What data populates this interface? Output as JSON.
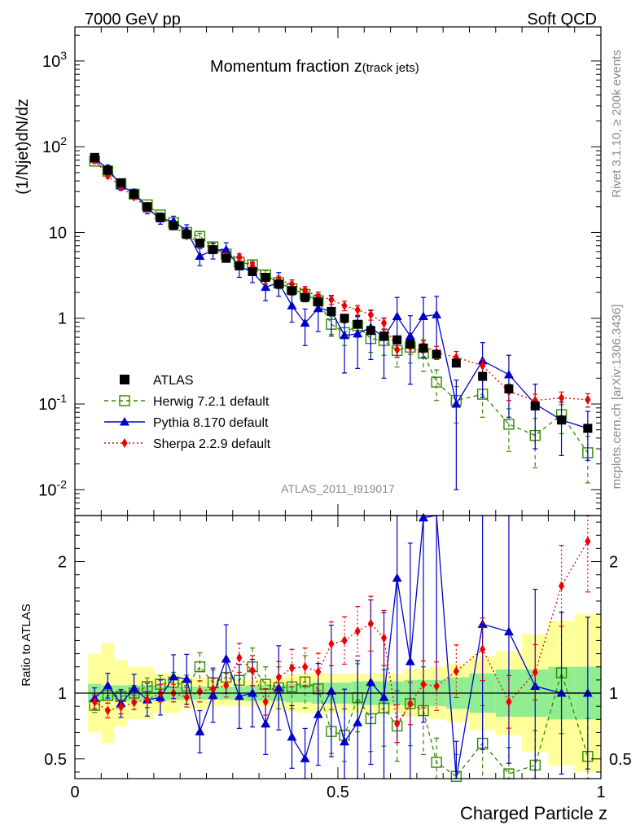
{
  "header": {
    "left": "7000 GeV pp",
    "right": "Soft QCD"
  },
  "side_texts": {
    "rivet": "Rivet 3.1.10, ≥ 200k events",
    "mcplots": "mcplots.cern.ch [arXiv:1306.3436]"
  },
  "chart_data": {
    "type": "line",
    "title": "Momentum fraction z",
    "title_sub": "(track jets)",
    "xlabel": "Charged Particle z",
    "ylabel": "(1/Njet)dN/dz",
    "ratio_ylabel": "Ratio to ATLAS",
    "analysis_label": "ATLAS_2011_I919017",
    "xlim": [
      0,
      1
    ],
    "ylim": [
      0.005,
      2500
    ],
    "yscale": "log",
    "ratio_ylim": [
      0.35,
      2.35
    ],
    "x_ticks": [
      "0",
      "0.5",
      "1"
    ],
    "y_ticks": [
      "10^-2",
      "10^-1",
      "1",
      "10",
      "10^2",
      "10^3"
    ],
    "ratio_ticks": [
      "0.5",
      "1",
      "2"
    ],
    "legend_position": "lower-left",
    "x": [
      0.0375,
      0.0625,
      0.0875,
      0.1125,
      0.1375,
      0.1625,
      0.1875,
      0.2125,
      0.2375,
      0.2625,
      0.2875,
      0.3125,
      0.3375,
      0.3625,
      0.3875,
      0.4125,
      0.4375,
      0.4625,
      0.4875,
      0.5125,
      0.5375,
      0.5625,
      0.5875,
      0.6125,
      0.6375,
      0.6625,
      0.6875,
      0.725,
      0.775,
      0.825,
      0.875,
      0.925,
      0.975
    ],
    "series": [
      {
        "name": "ATLAS",
        "style": "data",
        "color": "#000000",
        "values": [
          75,
          53,
          38,
          28,
          20,
          15,
          12,
          9.5,
          7.5,
          6.3,
          5.0,
          4.1,
          3.5,
          3.0,
          2.5,
          2.1,
          1.75,
          1.55,
          1.2,
          1.0,
          0.85,
          0.72,
          0.62,
          0.56,
          0.5,
          0.45,
          0.38,
          0.3,
          0.21,
          0.15,
          0.095,
          0.065,
          0.052
        ],
        "band_inner": [
          0.07,
          0.06,
          0.06,
          0.06,
          0.06,
          0.06,
          0.05,
          0.05,
          0.05,
          0.05,
          0.05,
          0.05,
          0.06,
          0.06,
          0.06,
          0.07,
          0.07,
          0.08,
          0.08,
          0.08,
          0.09,
          0.09,
          0.09,
          0.09,
          0.1,
          0.1,
          0.1,
          0.12,
          0.15,
          0.18,
          0.18,
          0.2,
          0.2
        ],
        "band_outer": [
          0.3,
          0.38,
          0.25,
          0.2,
          0.2,
          0.15,
          0.15,
          0.12,
          0.12,
          0.1,
          0.1,
          0.1,
          0.1,
          0.1,
          0.12,
          0.14,
          0.15,
          0.15,
          0.15,
          0.15,
          0.15,
          0.15,
          0.15,
          0.15,
          0.18,
          0.18,
          0.2,
          0.22,
          0.28,
          0.32,
          0.45,
          0.55,
          0.6
        ]
      },
      {
        "name": "Herwig 7.2.1 default",
        "style": "dashed",
        "marker": "open-square",
        "color": "#338800",
        "values": [
          68,
          52,
          37,
          28,
          21,
          16,
          13,
          10,
          9,
          6.8,
          5.6,
          4.5,
          4.2,
          3.2,
          2.6,
          2.2,
          1.9,
          1.6,
          0.85,
          0.68,
          0.82,
          0.58,
          0.55,
          0.42,
          0.46,
          0.39,
          0.18,
          0.11,
          0.13,
          0.058,
          0.043,
          0.075,
          0.027
        ],
        "err": [
          4,
          3,
          2,
          1.6,
          1.3,
          1,
          0.9,
          0.8,
          0.8,
          0.6,
          0.6,
          0.5,
          0.5,
          0.4,
          0.4,
          0.35,
          0.35,
          0.3,
          0.2,
          0.2,
          0.22,
          0.18,
          0.18,
          0.15,
          0.16,
          0.15,
          0.07,
          0.05,
          0.06,
          0.03,
          0.025,
          0.03,
          0.015
        ]
      },
      {
        "name": "Pythia 8.170 default",
        "style": "solid",
        "marker": "triangle",
        "color": "#0000cc",
        "values": [
          72,
          56,
          35,
          29,
          19,
          14.5,
          13.5,
          10.5,
          5.3,
          6.2,
          6.3,
          4.0,
          3.5,
          2.3,
          2.6,
          1.4,
          0.88,
          1.3,
          1.22,
          0.63,
          0.66,
          0.78,
          0.6,
          1.05,
          0.62,
          1.05,
          1.1,
          0.1,
          0.32,
          0.22,
          0.1,
          0.065,
          0.052
        ],
        "err": [
          6,
          5,
          4,
          3,
          2.5,
          2,
          2,
          1.8,
          1.2,
          1.3,
          1.3,
          1,
          0.9,
          0.7,
          0.8,
          0.5,
          0.4,
          0.6,
          0.6,
          0.4,
          0.4,
          0.45,
          0.4,
          0.7,
          0.45,
          0.7,
          0.7,
          0.09,
          0.2,
          0.15,
          0.07,
          0.04,
          0.03
        ]
      },
      {
        "name": "Sherpa 2.2.9 default",
        "style": "dotted",
        "marker": "diamond",
        "color": "#ee0000",
        "values": [
          70,
          46,
          34,
          26,
          19,
          15,
          12,
          9.2,
          7.6,
          6.5,
          5.3,
          5.2,
          4.1,
          2.8,
          2.8,
          2.5,
          2.1,
          1.8,
          1.65,
          1.4,
          1.25,
          1.1,
          0.88,
          0.43,
          0.46,
          0.48,
          0.4,
          0.35,
          0.28,
          0.14,
          0.11,
          0.118,
          0.112
        ],
        "err": [
          4,
          3,
          2,
          1.5,
          1.2,
          1,
          0.8,
          0.7,
          0.6,
          0.5,
          0.45,
          0.45,
          0.4,
          0.3,
          0.3,
          0.3,
          0.25,
          0.22,
          0.2,
          0.18,
          0.16,
          0.15,
          0.13,
          0.08,
          0.08,
          0.08,
          0.07,
          0.06,
          0.05,
          0.03,
          0.02,
          0.02,
          0.02
        ]
      }
    ]
  }
}
